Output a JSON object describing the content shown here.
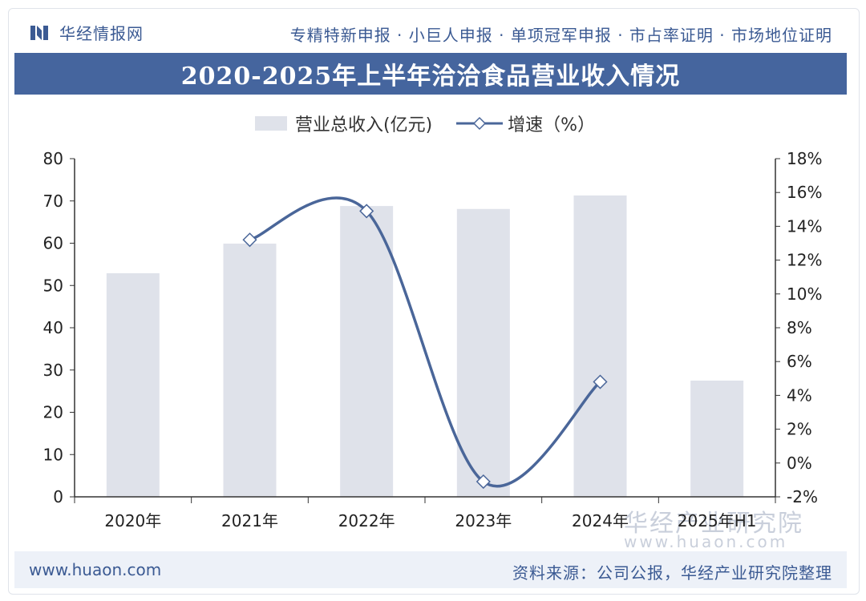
{
  "header": {
    "logo_text": "华经情报网",
    "services": "专精特新申报 · 小巨人申报 · 单项冠军申报 · 市占率证明 · 市场地位证明"
  },
  "footer": {
    "url": "www.huaon.com",
    "source": "资料来源：公司公报，华经产业研究院整理"
  },
  "watermark": {
    "text": "华经产业研究院",
    "url": "www.huaon.com"
  },
  "colors": {
    "bar": "#dfe2ea",
    "line": "#4a6699",
    "title_bg": "#45659e",
    "brand": "#3b5a93"
  },
  "chart_data": {
    "type": "bar",
    "title": "2020-2025年上半年洽洽食品营业收入情况",
    "categories": [
      "2020年",
      "2021年",
      "2022年",
      "2023年",
      "2024年",
      "2025年H1"
    ],
    "series": [
      {
        "name": "营业总收入(亿元)",
        "type": "bar",
        "axis": "left",
        "values": [
          52.9,
          59.9,
          68.8,
          68.1,
          71.3,
          27.5
        ]
      },
      {
        "name": "增速（%）",
        "type": "line",
        "axis": "right",
        "marker": "diamond",
        "values": [
          null,
          13.2,
          14.9,
          -1.1,
          4.8,
          null
        ]
      }
    ],
    "yaxis_left": {
      "min": 0,
      "max": 80,
      "ticks": [
        "0",
        "10",
        "20",
        "30",
        "40",
        "50",
        "60",
        "70",
        "80"
      ]
    },
    "yaxis_right": {
      "min": -2,
      "max": 18,
      "ticks": [
        "-2%",
        "0%",
        "2%",
        "4%",
        "6%",
        "8%",
        "10%",
        "12%",
        "14%",
        "16%",
        "18%"
      ]
    },
    "grid": false,
    "legend": "top"
  }
}
